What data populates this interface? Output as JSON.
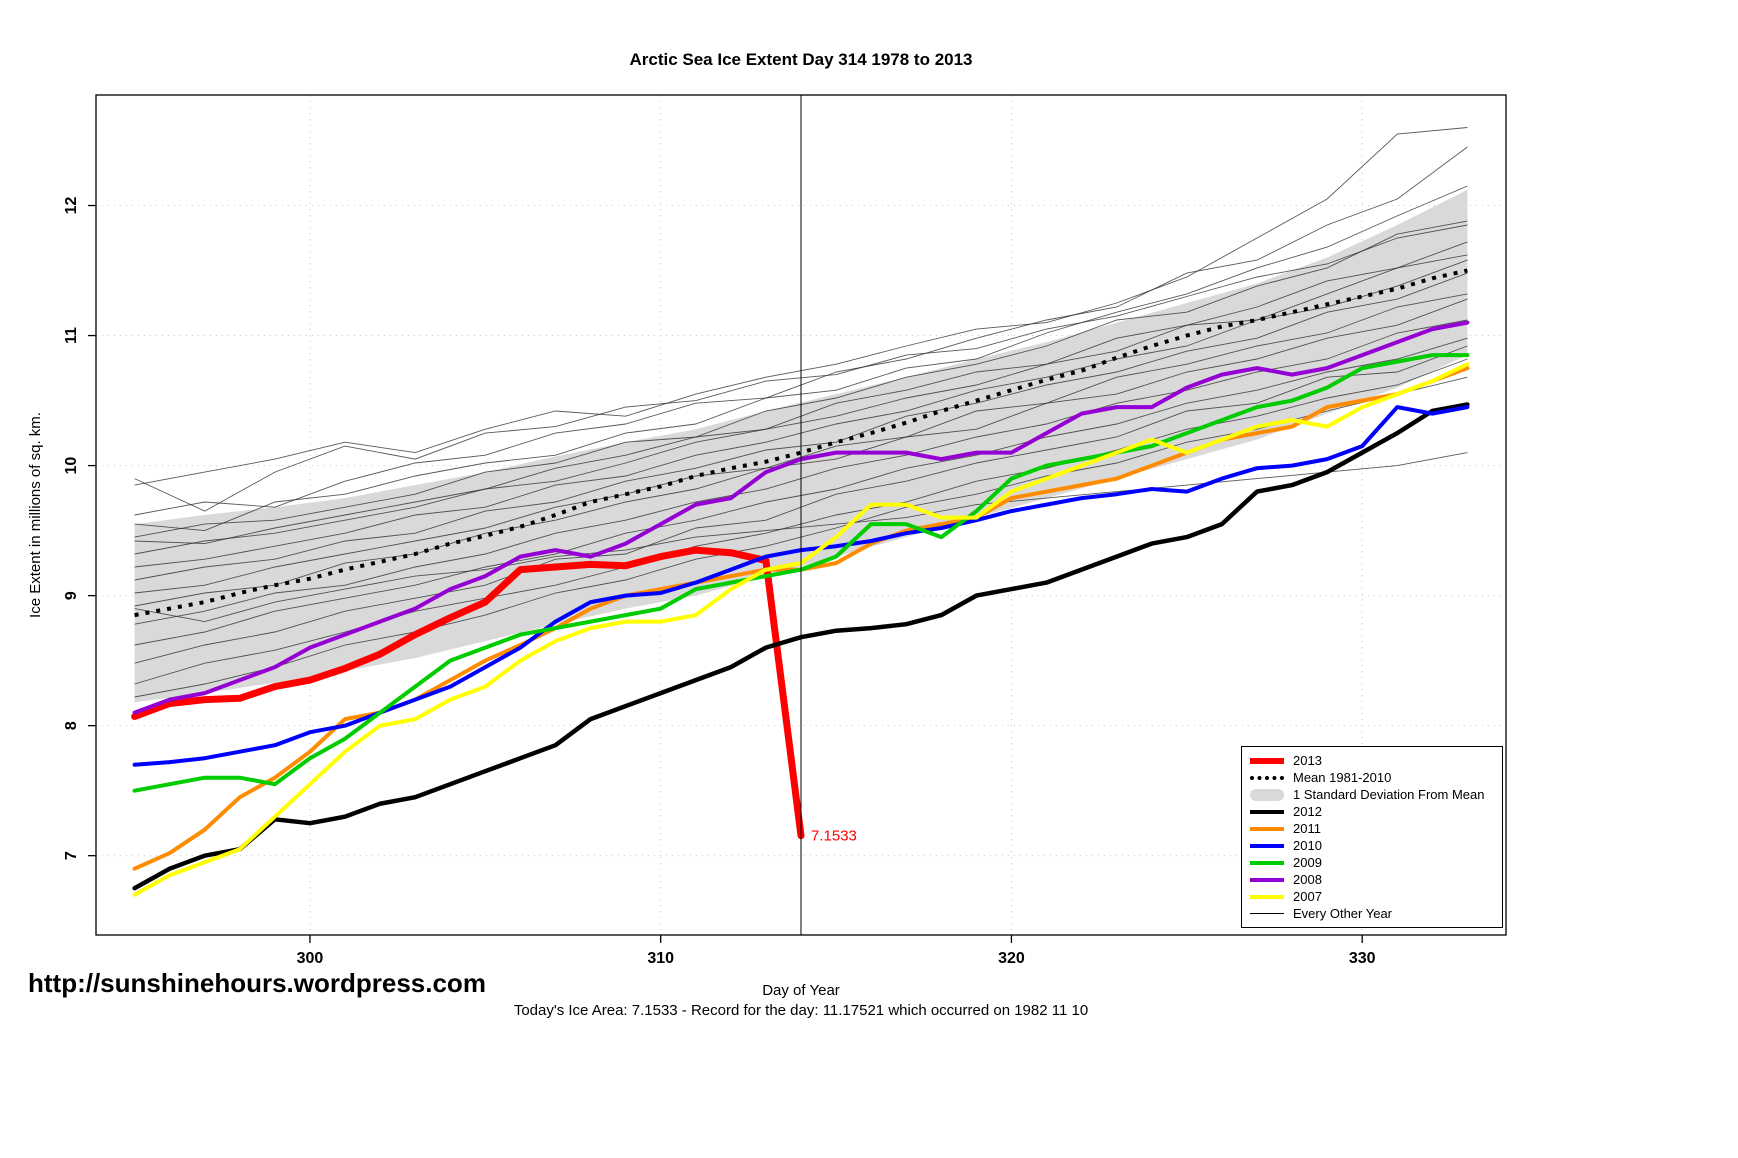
{
  "title": "Arctic Sea Ice Extent Day 314 1978 to 2013",
  "footer": {
    "url": "http://sunshinehours.wordpress.com",
    "note": "Today's Ice Area: 7.1533  - Record for the day: 11.17521 which occurred on 1982 11 10"
  },
  "chart_data": {
    "type": "line",
    "title": "Arctic Sea Ice Extent Day 314 1978 to 2013",
    "xlabel": "Day of Year",
    "ylabel": "Ice Extent in millions of sq. km.",
    "xlim": [
      293.9,
      334.1
    ],
    "ylim": [
      6.39,
      12.85
    ],
    "xticks": [
      300,
      310,
      320,
      330
    ],
    "yticks": [
      7,
      8,
      9,
      10,
      11,
      12
    ],
    "grid": true,
    "legend_position": "bottom-right",
    "vline_x": 314,
    "annotation": {
      "label": "7.1533",
      "x": 314,
      "y": 7.1533,
      "color": "#FF0000"
    },
    "band": {
      "name": "1 Standard Deviation From Mean",
      "color": "#D9D9D9",
      "x0": 295,
      "step": 2,
      "upper": [
        9.55,
        9.62,
        9.68,
        9.75,
        9.85,
        9.95,
        10.07,
        10.18,
        10.28,
        10.42,
        10.55,
        10.68,
        10.82,
        10.95,
        11.1,
        11.25,
        11.4,
        11.6,
        11.85,
        12.12
      ],
      "lower": [
        8.18,
        8.25,
        8.33,
        8.42,
        8.52,
        8.65,
        8.78,
        8.9,
        9.0,
        9.15,
        9.3,
        9.45,
        9.6,
        9.75,
        9.9,
        10.05,
        10.2,
        10.4,
        10.6,
        10.85
      ]
    },
    "mean": {
      "name": "Mean 1981-2010",
      "color": "#000000",
      "x0": 295,
      "step": 1,
      "values": [
        8.85,
        8.9,
        8.95,
        9.02,
        9.08,
        9.13,
        9.2,
        9.26,
        9.32,
        9.4,
        9.46,
        9.53,
        9.62,
        9.72,
        9.78,
        9.84,
        9.92,
        9.98,
        10.03,
        10.1,
        10.18,
        10.25,
        10.33,
        10.42,
        10.5,
        10.58,
        10.66,
        10.73,
        10.83,
        10.92,
        11.0,
        11.07,
        11.12,
        11.18,
        11.24,
        11.3,
        11.36,
        11.44,
        11.5
      ]
    },
    "series": [
      {
        "name": "2013",
        "color": "#FF0000",
        "width": 7,
        "x0": 295,
        "step": 1,
        "values": [
          8.07,
          8.17,
          8.2,
          8.21,
          8.3,
          8.35,
          8.44,
          8.55,
          8.7,
          8.83,
          8.95,
          9.2,
          9.22,
          9.24,
          9.23,
          9.3,
          9.35,
          9.33,
          9.27,
          7.1533
        ]
      },
      {
        "name": "2012",
        "color": "#000000",
        "width": 4.5,
        "x0": 295,
        "step": 1,
        "values": [
          6.75,
          6.9,
          7.0,
          7.05,
          7.28,
          7.25,
          7.3,
          7.4,
          7.45,
          7.55,
          7.65,
          7.75,
          7.85,
          8.05,
          8.15,
          8.25,
          8.35,
          8.45,
          8.6,
          8.68,
          8.73,
          8.75,
          8.78,
          8.85,
          9.0,
          9.05,
          9.1,
          9.2,
          9.3,
          9.4,
          9.45,
          9.55,
          9.8,
          9.85,
          9.95,
          10.1,
          10.25,
          10.42,
          10.47
        ]
      },
      {
        "name": "2011",
        "color": "#FF8C00",
        "width": 4,
        "x0": 295,
        "step": 1,
        "values": [
          6.9,
          7.02,
          7.2,
          7.45,
          7.6,
          7.8,
          8.05,
          8.1,
          8.2,
          8.35,
          8.5,
          8.62,
          8.75,
          8.9,
          9.0,
          9.05,
          9.1,
          9.15,
          9.2,
          9.2,
          9.25,
          9.4,
          9.5,
          9.55,
          9.6,
          9.75,
          9.8,
          9.85,
          9.9,
          10.0,
          10.1,
          10.2,
          10.25,
          10.3,
          10.45,
          10.5,
          10.55,
          10.65,
          10.75
        ]
      },
      {
        "name": "2010",
        "color": "#0000FF",
        "width": 4,
        "x0": 295,
        "step": 1,
        "values": [
          7.7,
          7.72,
          7.75,
          7.8,
          7.85,
          7.95,
          8.0,
          8.1,
          8.2,
          8.3,
          8.45,
          8.6,
          8.8,
          8.95,
          9.0,
          9.02,
          9.1,
          9.2,
          9.3,
          9.35,
          9.38,
          9.42,
          9.48,
          9.52,
          9.58,
          9.65,
          9.7,
          9.75,
          9.78,
          9.82,
          9.8,
          9.9,
          9.98,
          10.0,
          10.05,
          10.15,
          10.45,
          10.4,
          10.45
        ]
      },
      {
        "name": "2009",
        "color": "#00CC00",
        "width": 4,
        "x0": 295,
        "step": 1,
        "values": [
          7.5,
          7.55,
          7.6,
          7.6,
          7.55,
          7.75,
          7.9,
          8.1,
          8.3,
          8.5,
          8.6,
          8.7,
          8.75,
          8.8,
          8.85,
          8.9,
          9.05,
          9.1,
          9.15,
          9.2,
          9.3,
          9.55,
          9.55,
          9.45,
          9.65,
          9.9,
          10.0,
          10.05,
          10.1,
          10.15,
          10.25,
          10.35,
          10.45,
          10.5,
          10.6,
          10.75,
          10.8,
          10.85,
          10.85
        ]
      },
      {
        "name": "2008",
        "color": "#9400D3",
        "width": 4,
        "x0": 295,
        "step": 1,
        "values": [
          8.1,
          8.2,
          8.25,
          8.35,
          8.45,
          8.6,
          8.7,
          8.8,
          8.9,
          9.05,
          9.15,
          9.3,
          9.35,
          9.3,
          9.4,
          9.55,
          9.7,
          9.75,
          9.95,
          10.05,
          10.1,
          10.1,
          10.1,
          10.05,
          10.1,
          10.1,
          10.25,
          10.4,
          10.45,
          10.45,
          10.6,
          10.7,
          10.75,
          10.7,
          10.75,
          10.85,
          10.95,
          11.05,
          11.1
        ]
      },
      {
        "name": "2007",
        "color": "#FFFF00",
        "width": 4,
        "x0": 295,
        "step": 1,
        "values": [
          6.7,
          6.85,
          6.95,
          7.05,
          7.3,
          7.55,
          7.8,
          8.0,
          8.05,
          8.2,
          8.3,
          8.5,
          8.65,
          8.75,
          8.8,
          8.8,
          8.85,
          9.05,
          9.2,
          9.25,
          9.45,
          9.7,
          9.7,
          9.6,
          9.6,
          9.8,
          9.9,
          10.0,
          10.1,
          10.2,
          10.1,
          10.2,
          10.3,
          10.35,
          10.3,
          10.45,
          10.55,
          10.65,
          10.78
        ]
      }
    ],
    "background_series_name": "Every Other Year",
    "background_x0": 295,
    "background_step": 2,
    "background_series": [
      [
        9.85,
        9.95,
        10.05,
        10.18,
        10.1,
        10.28,
        10.42,
        10.38,
        10.55,
        10.68,
        10.78,
        10.92,
        11.05,
        11.1,
        11.25,
        11.45,
        11.75,
        12.05,
        12.55,
        12.6
      ],
      [
        9.62,
        9.72,
        9.68,
        9.88,
        10.02,
        10.08,
        10.25,
        10.32,
        10.48,
        10.52,
        10.72,
        10.82,
        10.98,
        11.12,
        11.22,
        11.48,
        11.58,
        11.85,
        12.05,
        12.45
      ],
      [
        9.55,
        9.5,
        9.72,
        9.78,
        9.92,
        10.02,
        10.08,
        10.25,
        10.32,
        10.52,
        10.58,
        10.75,
        10.82,
        11.02,
        11.18,
        11.32,
        11.52,
        11.68,
        11.92,
        12.15
      ],
      [
        9.45,
        9.55,
        9.58,
        9.68,
        9.78,
        9.95,
        10.02,
        10.18,
        10.22,
        10.42,
        10.52,
        10.68,
        10.78,
        10.92,
        11.12,
        11.18,
        11.38,
        11.52,
        11.78,
        11.88
      ],
      [
        9.42,
        9.4,
        9.52,
        9.62,
        9.72,
        9.82,
        9.98,
        10.08,
        10.22,
        10.28,
        10.48,
        10.58,
        10.72,
        10.78,
        10.98,
        11.08,
        11.22,
        11.42,
        11.52,
        11.72
      ],
      [
        9.32,
        9.42,
        9.48,
        9.58,
        9.68,
        9.82,
        9.88,
        10.02,
        10.18,
        10.28,
        10.38,
        10.52,
        10.62,
        10.78,
        10.88,
        11.08,
        11.12,
        11.32,
        11.52,
        11.62
      ],
      [
        9.22,
        9.28,
        9.38,
        9.48,
        9.62,
        9.68,
        9.85,
        9.92,
        10.08,
        10.18,
        10.32,
        10.42,
        10.58,
        10.68,
        10.82,
        10.92,
        11.12,
        11.22,
        11.38,
        11.58
      ],
      [
        9.12,
        9.22,
        9.28,
        9.42,
        9.48,
        9.65,
        9.72,
        9.88,
        9.98,
        10.12,
        10.18,
        10.38,
        10.48,
        10.62,
        10.72,
        10.88,
        10.98,
        11.18,
        11.28,
        11.48
      ],
      [
        9.02,
        9.08,
        9.22,
        9.32,
        9.42,
        9.52,
        9.68,
        9.78,
        9.92,
        9.98,
        10.15,
        10.22,
        10.42,
        10.48,
        10.68,
        10.78,
        10.92,
        11.02,
        11.22,
        11.32
      ],
      [
        8.92,
        9.02,
        9.08,
        9.25,
        9.32,
        9.48,
        9.58,
        9.72,
        9.82,
        9.98,
        10.05,
        10.22,
        10.28,
        10.48,
        10.55,
        10.72,
        10.82,
        10.98,
        11.08,
        11.28
      ],
      [
        8.78,
        8.88,
        9.02,
        9.08,
        9.22,
        9.32,
        9.48,
        9.58,
        9.72,
        9.82,
        9.98,
        10.08,
        10.22,
        10.32,
        10.48,
        10.58,
        10.72,
        10.82,
        11.02,
        11.12
      ],
      [
        8.62,
        8.72,
        8.88,
        8.98,
        9.08,
        9.22,
        9.32,
        9.48,
        9.58,
        9.72,
        9.82,
        9.98,
        10.08,
        10.22,
        10.32,
        10.48,
        10.58,
        10.72,
        10.82,
        10.98
      ],
      [
        8.48,
        8.62,
        8.72,
        8.88,
        8.98,
        9.08,
        9.28,
        9.32,
        9.52,
        9.58,
        9.78,
        9.88,
        10.02,
        10.12,
        10.22,
        10.42,
        10.48,
        10.68,
        10.72,
        10.92
      ],
      [
        8.32,
        8.48,
        8.58,
        8.72,
        8.88,
        8.98,
        9.08,
        9.22,
        9.38,
        9.48,
        9.62,
        9.72,
        9.88,
        9.98,
        10.12,
        10.28,
        10.38,
        10.52,
        10.62,
        10.82
      ],
      [
        8.22,
        8.32,
        8.45,
        8.62,
        8.72,
        8.85,
        9.02,
        9.12,
        9.28,
        9.38,
        9.52,
        9.68,
        9.78,
        9.92,
        10.02,
        10.18,
        10.28,
        10.42,
        10.55,
        10.68
      ],
      [
        8.9,
        8.8,
        8.95,
        9.05,
        9.15,
        9.2,
        9.3,
        9.35,
        9.45,
        9.5,
        9.55,
        9.6,
        9.7,
        9.75,
        9.8,
        9.85,
        9.9,
        9.95,
        10.0,
        10.1
      ],
      [
        9.9,
        9.65,
        9.95,
        10.15,
        10.05,
        10.25,
        10.3,
        10.45,
        10.5,
        10.65,
        10.7,
        10.85,
        10.9,
        11.05,
        11.15,
        11.3,
        11.45,
        11.55,
        11.75,
        11.85
      ]
    ],
    "legend": [
      {
        "label": "2013",
        "type": "line",
        "color": "#FF0000",
        "lw": 6
      },
      {
        "label": "Mean 1981-2010",
        "type": "dashed",
        "color": "#000000",
        "lw": 4
      },
      {
        "label": "1 Standard Deviation From Mean",
        "type": "band",
        "color": "#D9D9D9",
        "lw": 12
      },
      {
        "label": "2012",
        "type": "line",
        "color": "#000000",
        "lw": 4
      },
      {
        "label": "2011",
        "type": "line",
        "color": "#FF8C00",
        "lw": 4
      },
      {
        "label": "2010",
        "type": "line",
        "color": "#0000FF",
        "lw": 4
      },
      {
        "label": "2009",
        "type": "line",
        "color": "#00CC00",
        "lw": 4
      },
      {
        "label": "2008",
        "type": "line",
        "color": "#9400D3",
        "lw": 4
      },
      {
        "label": "2007",
        "type": "line",
        "color": "#FFFF00",
        "lw": 4
      },
      {
        "label": "Every Other Year",
        "type": "thin",
        "color": "#000000",
        "lw": 1
      }
    ]
  }
}
